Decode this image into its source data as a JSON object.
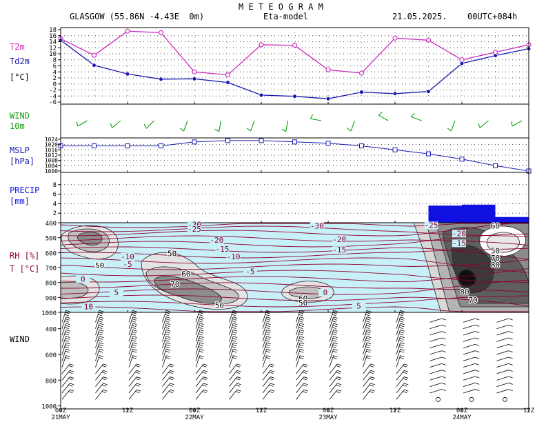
{
  "header": {
    "title": "M E T E O G R A M",
    "location": "GLASGOW (55.86N -4.43E  0m)",
    "model": "Eta-model",
    "date": "21.05.2025.",
    "run": "00UTC+084h"
  },
  "panels": {
    "temp": {
      "label1": "T2m",
      "label2": "Td2m",
      "label3": "[°C]"
    },
    "wind10": {
      "label1": "WIND",
      "label2": "10m"
    },
    "mslp": {
      "label1": "MSLP",
      "label2": "[hPa]"
    },
    "precip": {
      "label1": "PRECIP",
      "label2": "[mm]"
    },
    "rh": {
      "label1": "RH [%]",
      "label2": "T [°C]"
    },
    "windprof": {
      "label1": "WIND"
    }
  },
  "colors": {
    "t2m": "#d02cc0",
    "td2m": "#1818b0",
    "wind10": "#10a010",
    "mslp": "#1818b0",
    "precip": "#1010e0",
    "isotherm": "#900030",
    "rh_background": "#c8f0f8"
  },
  "chart_data": {
    "type": "line",
    "x_hours": [
      0,
      6,
      12,
      18,
      24,
      30,
      36,
      42,
      48,
      54,
      60,
      66,
      72,
      78,
      84
    ],
    "x_ticks": [
      {
        "hour": 0,
        "label": "00Z",
        "day": "21MAY"
      },
      {
        "hour": 12,
        "label": "12Z",
        "day": ""
      },
      {
        "hour": 24,
        "label": "00Z",
        "day": "22MAY"
      },
      {
        "hour": 36,
        "label": "12Z",
        "day": ""
      },
      {
        "hour": 48,
        "label": "00Z",
        "day": "23MAY"
      },
      {
        "hour": 60,
        "label": "12Z",
        "day": ""
      },
      {
        "hour": 72,
        "label": "00Z",
        "day": "24MAY"
      },
      {
        "hour": 84,
        "label": "12Z",
        "day": ""
      }
    ],
    "temperature": {
      "ylim": [
        -6,
        18
      ],
      "yticks": [
        -6,
        -4,
        -2,
        0,
        2,
        4,
        6,
        8,
        10,
        12,
        14,
        16,
        18
      ],
      "t2m": [
        15,
        9.5,
        17.5,
        17,
        4,
        3,
        13,
        12.8,
        4.7,
        3.6,
        15.2,
        14.5,
        8,
        10.5,
        13
      ],
      "td2m": [
        14.5,
        6.2,
        3.3,
        1.6,
        1.7,
        0.5,
        -3.7,
        -4.1,
        -4.9,
        -2.7,
        -3.2,
        -2.5,
        6.8,
        9.4,
        11.7
      ]
    },
    "wind10m": {
      "direction_deg": [
        250,
        240,
        230,
        225,
        200,
        190,
        200,
        190,
        280,
        200,
        300,
        290,
        200,
        230,
        240
      ]
    },
    "mslp": {
      "ylim": [
        1000,
        1024
      ],
      "yticks": [
        1000,
        1004,
        1008,
        1012,
        1016,
        1020,
        1024
      ],
      "values": [
        1019,
        1019,
        1019,
        1019,
        1022,
        1023,
        1023,
        1022,
        1021,
        1019,
        1016,
        1013,
        1009,
        1004,
        1000
      ]
    },
    "precip": {
      "ylim": [
        0,
        10
      ],
      "yticks": [
        2,
        4,
        6,
        8
      ],
      "hours": [
        72,
        78,
        84
      ],
      "values": [
        3.6,
        3.8,
        1.2
      ]
    },
    "rh_t": {
      "pressure_ticks": [
        400,
        500,
        600,
        700,
        800,
        900,
        1000
      ],
      "isotherm_labels": [
        {
          "hour": 24,
          "hpa": 420,
          "value": "-30"
        },
        {
          "hour": 24,
          "hpa": 450,
          "value": "-25"
        },
        {
          "hour": 28,
          "hpa": 525,
          "value": "-20"
        },
        {
          "hour": 29,
          "hpa": 585,
          "value": "-15"
        },
        {
          "hour": 31,
          "hpa": 635,
          "value": "-10"
        },
        {
          "hour": 34,
          "hpa": 735,
          "value": "-5"
        },
        {
          "hour": 46,
          "hpa": 430,
          "value": "-30"
        },
        {
          "hour": 50,
          "hpa": 520,
          "value": "-20"
        },
        {
          "hour": 50,
          "hpa": 590,
          "value": "-15"
        },
        {
          "hour": 12,
          "hpa": 635,
          "value": "-10"
        },
        {
          "hour": 12,
          "hpa": 685,
          "value": "-5"
        },
        {
          "hour": 4,
          "hpa": 785,
          "value": "0"
        },
        {
          "hour": 10,
          "hpa": 875,
          "value": "5"
        },
        {
          "hour": 5,
          "hpa": 970,
          "value": "10"
        },
        {
          "hour": 47.5,
          "hpa": 875,
          "value": "0"
        },
        {
          "hour": 53.5,
          "hpa": 965,
          "value": "5"
        },
        {
          "hour": 66.5,
          "hpa": 425,
          "value": "-25"
        },
        {
          "hour": 71.5,
          "hpa": 480,
          "value": "-20"
        },
        {
          "hour": 71.5,
          "hpa": 545,
          "value": "-15"
        }
      ],
      "rh_labels": [
        {
          "hour": 7,
          "hpa": 695,
          "value": "50"
        },
        {
          "hour": 20,
          "hpa": 615,
          "value": "50"
        },
        {
          "hour": 22.5,
          "hpa": 750,
          "value": "60"
        },
        {
          "hour": 20.5,
          "hpa": 820,
          "value": "70"
        },
        {
          "hour": 28.5,
          "hpa": 960,
          "value": "50"
        },
        {
          "hour": 43.5,
          "hpa": 915,
          "value": "60"
        },
        {
          "hour": 43.5,
          "hpa": 945,
          "value": "50"
        },
        {
          "hour": 78,
          "hpa": 430,
          "value": "60"
        },
        {
          "hour": 78,
          "hpa": 595,
          "value": "50"
        },
        {
          "hour": 78,
          "hpa": 645,
          "value": "70"
        },
        {
          "hour": 78,
          "hpa": 690,
          "value": "80"
        },
        {
          "hour": 72.5,
          "hpa": 870,
          "value": "80"
        },
        {
          "hour": 74,
          "hpa": 925,
          "value": "70"
        }
      ]
    },
    "wind_profile": {
      "pressure_ticks": [
        400,
        600,
        800,
        1000
      ]
    }
  }
}
